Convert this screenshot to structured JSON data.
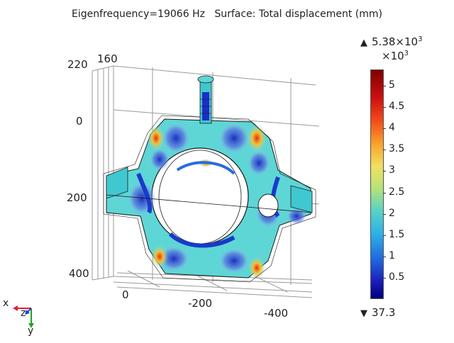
{
  "title": {
    "eigenfrequency": "Eigenfrequency=19066 Hz",
    "surface": "Surface: Total displacement (mm)"
  },
  "axes": {
    "vertical_ticks": [
      "220",
      "0",
      "200",
      "400"
    ],
    "top_tick": "160",
    "horizontal_ticks": [
      "0",
      "-200",
      "-400"
    ]
  },
  "colorbar": {
    "max_label": "5.38×10",
    "max_exp": "3",
    "multiplier": "×10",
    "multiplier_exp": "3",
    "min_label": "37.3",
    "ticks": [
      "5",
      "4.5",
      "4",
      "3.5",
      "3",
      "2.5",
      "2",
      "1.5",
      "1",
      "0.5"
    ],
    "tick_values": [
      5,
      4.5,
      4,
      3.5,
      3,
      2.5,
      2,
      1.5,
      1,
      0.5
    ],
    "range": [
      0.0373,
      5.38
    ]
  },
  "triad": {
    "x": "x",
    "y": "y",
    "z": "z"
  },
  "colors": {
    "x_axis": "#e0203a",
    "y_axis": "#28a028",
    "z_axis": "#2040d0"
  }
}
